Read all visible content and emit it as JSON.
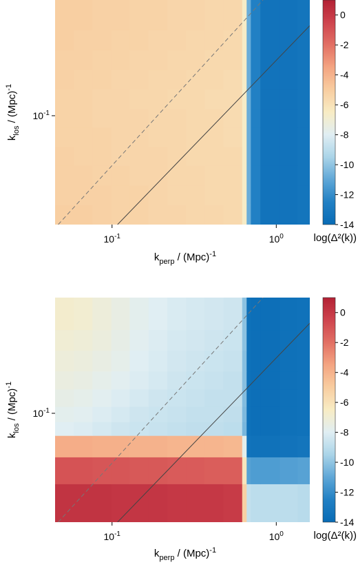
{
  "chart_data": [
    {
      "type": "heatmap",
      "title": "",
      "xlabel": {
        "main": "k",
        "sub": "perp",
        "unit": " / (Mpc)",
        "sup": "-1"
      },
      "ylabel": {
        "main": "k",
        "sub": "los",
        "unit": " / (Mpc)",
        "sup": "-1"
      },
      "x_scale": "log",
      "y_scale": "log",
      "xlim": [
        0.045,
        1.6
      ],
      "ylim": [
        0.022,
        0.5
      ],
      "x_ticks": [
        {
          "value": 0.1,
          "base": "10",
          "exp": "-1"
        },
        {
          "value": 1,
          "base": "10",
          "exp": "0"
        }
      ],
      "y_ticks": [
        {
          "value": 0.1,
          "base": "10",
          "exp": "-1"
        }
      ],
      "x_edges": [
        0.045,
        0.0585,
        0.076,
        0.099,
        0.128,
        0.167,
        0.217,
        0.282,
        0.366,
        0.476,
        0.62,
        0.66,
        0.7,
        0.8,
        1.05,
        1.35,
        1.6
      ],
      "y_edges": [
        0.022,
        0.029,
        0.038,
        0.05,
        0.065,
        0.085,
        0.11,
        0.145,
        0.19,
        0.25,
        0.33,
        0.5
      ],
      "z_rows_bottom_to_top": [
        [
          -5.1,
          -5.1,
          -5.2,
          -5.3,
          -5.3,
          -5.4,
          -5.4,
          -5.5,
          -5.5,
          -5.6,
          -6.6,
          -10.8,
          -12.5,
          -13.4,
          -13.4,
          -13.3
        ],
        [
          -5.2,
          -5.2,
          -5.2,
          -5.3,
          -5.3,
          -5.4,
          -5.5,
          -5.5,
          -5.6,
          -5.6,
          -6.6,
          -10.8,
          -12.5,
          -13.4,
          -13.4,
          -13.3
        ],
        [
          -5.2,
          -5.2,
          -5.3,
          -5.3,
          -5.4,
          -5.4,
          -5.5,
          -5.5,
          -5.6,
          -5.6,
          -6.6,
          -10.8,
          -12.5,
          -13.4,
          -13.4,
          -13.3
        ],
        [
          -5.2,
          -5.3,
          -5.3,
          -5.4,
          -5.4,
          -5.4,
          -5.5,
          -5.6,
          -5.6,
          -5.6,
          -6.6,
          -10.8,
          -12.5,
          -13.4,
          -13.4,
          -13.3
        ],
        [
          -5.3,
          -5.3,
          -5.3,
          -5.4,
          -5.4,
          -5.5,
          -5.5,
          -5.6,
          -5.6,
          -5.7,
          -6.6,
          -10.8,
          -12.5,
          -13.4,
          -13.4,
          -13.3
        ],
        [
          -5.3,
          -5.3,
          -5.4,
          -5.4,
          -5.4,
          -5.5,
          -5.5,
          -5.6,
          -5.6,
          -5.7,
          -6.6,
          -10.8,
          -12.5,
          -13.4,
          -13.4,
          -13.3
        ],
        [
          -5.3,
          -5.3,
          -5.4,
          -5.4,
          -5.5,
          -5.5,
          -5.6,
          -5.6,
          -5.7,
          -5.7,
          -6.6,
          -10.8,
          -12.5,
          -13.4,
          -13.4,
          -13.3
        ],
        [
          -5.2,
          -5.3,
          -5.3,
          -5.4,
          -5.4,
          -5.5,
          -5.5,
          -5.6,
          -5.6,
          -5.7,
          -6.6,
          -10.8,
          -12.5,
          -13.4,
          -13.4,
          -13.3
        ],
        [
          -5.2,
          -5.2,
          -5.3,
          -5.3,
          -5.4,
          -5.4,
          -5.5,
          -5.5,
          -5.6,
          -5.6,
          -6.6,
          -10.8,
          -12.5,
          -13.4,
          -13.4,
          -13.3
        ],
        [
          -5.1,
          -5.2,
          -5.2,
          -5.3,
          -5.3,
          -5.4,
          -5.4,
          -5.5,
          -5.5,
          -5.6,
          -6.6,
          -10.8,
          -12.5,
          -13.4,
          -13.4,
          -13.3
        ],
        [
          -5.1,
          -5.1,
          -5.2,
          -5.2,
          -5.3,
          -5.3,
          -5.4,
          -5.4,
          -5.5,
          -5.5,
          -6.6,
          -10.8,
          -12.5,
          -13.4,
          -13.4,
          -13.3
        ]
      ],
      "lines": [
        {
          "style": "dashed",
          "points": [
            [
              0.047,
              0.022
            ],
            [
              0.83,
              0.5
            ]
          ]
        },
        {
          "style": "solid",
          "points": [
            [
              0.108,
              0.022
            ],
            [
              1.6,
              0.35
            ]
          ]
        }
      ],
      "colorbar": {
        "label": "log(Δ²(k))",
        "zmin": -14,
        "zmax": 1,
        "ticks": [
          0,
          -2,
          -4,
          -6,
          -8,
          -10,
          -12,
          -14
        ]
      }
    },
    {
      "type": "heatmap",
      "title": "",
      "xlabel": {
        "main": "k",
        "sub": "perp",
        "unit": " / (Mpc)",
        "sup": "-1"
      },
      "ylabel": {
        "main": "k",
        "sub": "los",
        "unit": " / (Mpc)",
        "sup": "-1"
      },
      "x_scale": "log",
      "y_scale": "log",
      "xlim": [
        0.045,
        1.6
      ],
      "ylim": [
        0.022,
        0.5
      ],
      "x_ticks": [
        {
          "value": 0.1,
          "base": "10",
          "exp": "-1"
        },
        {
          "value": 1,
          "base": "10",
          "exp": "0"
        }
      ],
      "y_ticks": [
        {
          "value": 0.1,
          "base": "10",
          "exp": "-1"
        }
      ],
      "x_edges": [
        0.045,
        0.0585,
        0.076,
        0.099,
        0.128,
        0.167,
        0.217,
        0.282,
        0.366,
        0.476,
        0.62,
        0.66,
        0.7,
        0.8,
        1.05,
        1.35,
        1.6
      ],
      "y_edges": [
        0.022,
        0.0375,
        0.0545,
        0.0735,
        0.089,
        0.11,
        0.14,
        0.18,
        0.24,
        0.32,
        0.5
      ],
      "z_rows_bottom_to_top": [
        [
          0.2,
          0.2,
          0.2,
          0.1,
          0.1,
          0.1,
          0.0,
          0.0,
          0.0,
          -0.1,
          -5.2,
          -8.8,
          -9.0,
          -9.0,
          -9.0,
          -9.1
        ],
        [
          -1.0,
          -1.0,
          -1.1,
          -1.1,
          -1.2,
          -1.2,
          -1.3,
          -1.3,
          -1.4,
          -1.4,
          -6.2,
          -11.2,
          -11.4,
          -11.4,
          -11.3,
          -11.2
        ],
        [
          -3.8,
          -3.8,
          -3.9,
          -3.9,
          -4.0,
          -4.0,
          -4.1,
          -4.1,
          -4.1,
          -4.2,
          -7.8,
          -13.4,
          -13.5,
          -13.5,
          -13.4,
          -13.3
        ],
        [
          -8.0,
          -8.1,
          -8.3,
          -8.5,
          -8.6,
          -8.7,
          -8.8,
          -8.9,
          -8.9,
          -9.0,
          -10.5,
          -13.6,
          -13.7,
          -13.7,
          -13.6,
          -13.5
        ],
        [
          -7.8,
          -7.9,
          -8.1,
          -8.3,
          -8.5,
          -8.6,
          -8.7,
          -8.8,
          -8.8,
          -8.9,
          -10.4,
          -13.6,
          -13.7,
          -13.7,
          -13.6,
          -13.5
        ],
        [
          -7.6,
          -7.7,
          -7.9,
          -8.1,
          -8.3,
          -8.5,
          -8.6,
          -8.7,
          -8.8,
          -8.8,
          -10.3,
          -13.6,
          -13.7,
          -13.7,
          -13.6,
          -13.5
        ],
        [
          -7.4,
          -7.5,
          -7.7,
          -7.9,
          -8.1,
          -8.3,
          -8.5,
          -8.6,
          -8.7,
          -8.8,
          -10.2,
          -13.6,
          -13.7,
          -13.7,
          -13.6,
          -13.5
        ],
        [
          -7.2,
          -7.3,
          -7.5,
          -7.7,
          -8.0,
          -8.2,
          -8.4,
          -8.5,
          -8.6,
          -8.7,
          -10.2,
          -13.6,
          -13.7,
          -13.7,
          -13.6,
          -13.5
        ],
        [
          -7.0,
          -7.1,
          -7.3,
          -7.6,
          -7.9,
          -8.1,
          -8.3,
          -8.4,
          -8.5,
          -8.6,
          -10.1,
          -13.6,
          -13.7,
          -13.7,
          -13.6,
          -13.5
        ],
        [
          -6.8,
          -6.9,
          -7.2,
          -7.5,
          -7.8,
          -8.0,
          -8.2,
          -8.3,
          -8.4,
          -8.5,
          -10.1,
          -13.6,
          -13.7,
          -13.7,
          -13.6,
          -13.5
        ]
      ],
      "lines": [
        {
          "style": "dashed",
          "points": [
            [
              0.047,
              0.022
            ],
            [
              0.83,
              0.5
            ]
          ]
        },
        {
          "style": "solid",
          "points": [
            [
              0.108,
              0.022
            ],
            [
              1.6,
              0.35
            ]
          ]
        }
      ],
      "colorbar": {
        "label": "log(Δ²(k))",
        "zmin": -14,
        "zmax": 1,
        "ticks": [
          0,
          -2,
          -4,
          -6,
          -8,
          -10,
          -12,
          -14
        ]
      }
    }
  ]
}
